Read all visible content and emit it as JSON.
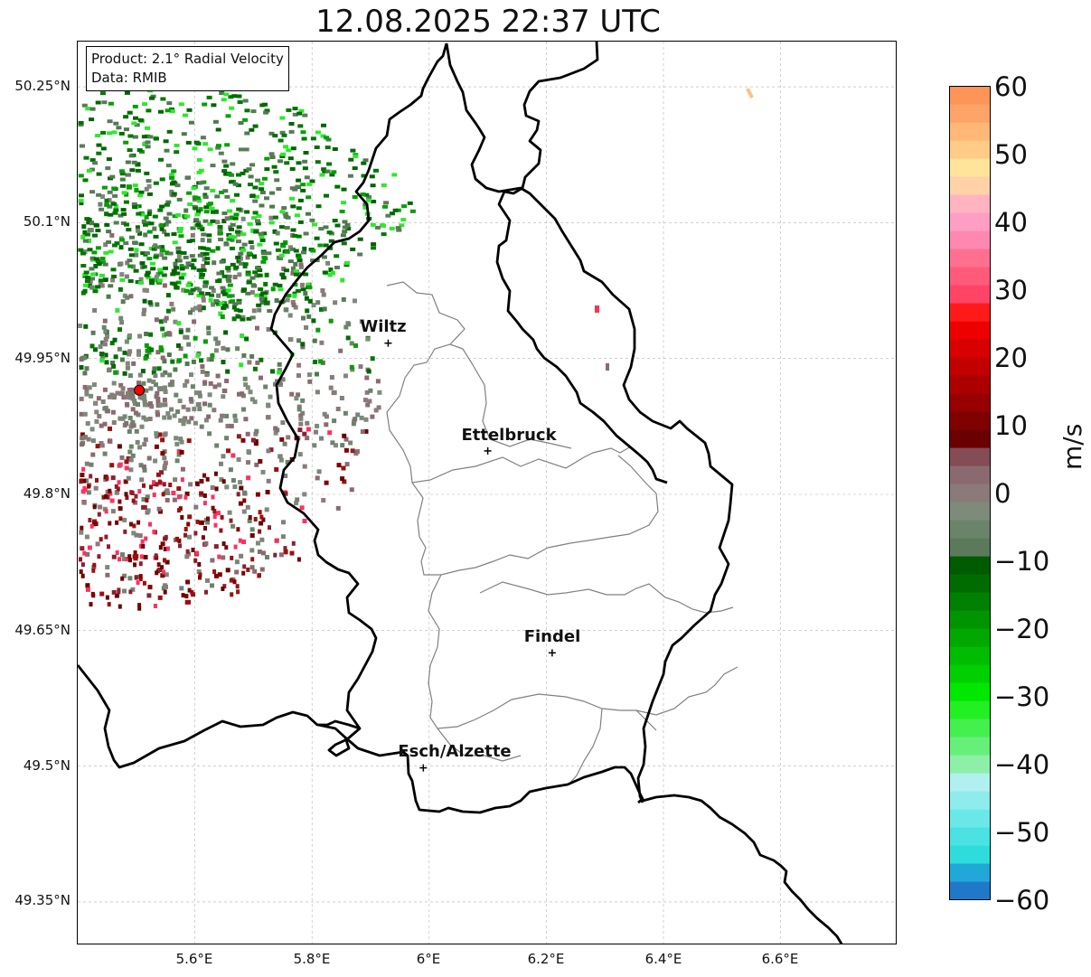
{
  "title": "12.08.2025 22:37 UTC",
  "info": {
    "product": "Product: 2.1° Radial Velocity",
    "data_source": "Data: RMIB"
  },
  "lat_labels": [
    "50.25°N",
    "50.1°N",
    "49.95°N",
    "49.8°N",
    "49.65°N",
    "49.5°N",
    "49.35°N"
  ],
  "lon_labels": [
    "5.6°E",
    "5.8°E",
    "6°E",
    "6.2°E",
    "6.4°E",
    "6.6°E"
  ],
  "cities": [
    {
      "name": "Wiltz",
      "lon": 5.93,
      "lat": 49.967
    },
    {
      "name": "Ettelbruck",
      "lon": 6.1,
      "lat": 49.848
    },
    {
      "name": "Findel",
      "lon": 6.21,
      "lat": 49.625
    },
    {
      "name": "Esch/Alzette",
      "lon": 5.99,
      "lat": 49.498
    }
  ],
  "radar_site": {
    "lon": 5.505,
    "lat": 49.915,
    "color": "#ff0000"
  },
  "colorbar": {
    "unit": "m/s",
    "min": -60,
    "max": 60,
    "ticks": [
      "60",
      "50",
      "40",
      "30",
      "20",
      "10",
      "0",
      "−10",
      "−20",
      "−30",
      "−40",
      "−50",
      "−60"
    ],
    "colors_bottom_to_top": [
      "#1f78c8",
      "#22a8d8",
      "#2edcdc",
      "#4ae2e2",
      "#6ae8e8",
      "#8eecec",
      "#b0f0f0",
      "#8ef0a8",
      "#66f07a",
      "#44f050",
      "#22f022",
      "#00e800",
      "#00d000",
      "#00bc00",
      "#00a800",
      "#009400",
      "#008000",
      "#006c00",
      "#005a00",
      "#5a7a5a",
      "#6a846a",
      "#7e8a7a",
      "#8a7a7a",
      "#8a6a70",
      "#844c54",
      "#6a0000",
      "#800000",
      "#960000",
      "#ac0000",
      "#c20000",
      "#d80000",
      "#ee0000",
      "#ff1a1a",
      "#ff4466",
      "#ff5a7a",
      "#ff7090",
      "#ff88b0",
      "#ff9ec4",
      "#ffb4c0",
      "#ffd2a8",
      "#ffe49a",
      "#ffcc88",
      "#ffb878",
      "#ffa468",
      "#ff9458"
    ]
  }
}
